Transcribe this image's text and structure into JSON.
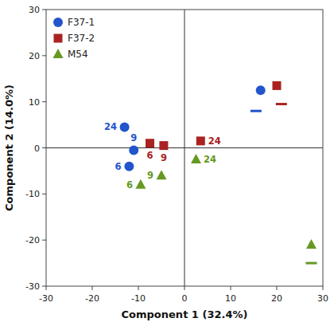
{
  "chart_data": {
    "type": "scatter",
    "xlabel": "Component 1 (32.4%)",
    "ylabel": "Component 2 (14.0%)",
    "xlim": [
      -30,
      30
    ],
    "ylim": [
      -30,
      30
    ],
    "xticks": [
      -30,
      -20,
      -10,
      0,
      10,
      20,
      30
    ],
    "yticks": [
      -30,
      -20,
      -10,
      0,
      10,
      20,
      30
    ],
    "grid": false,
    "legend": "upper left",
    "series": [
      {
        "name": "F37-1",
        "color": "#2255cc",
        "marker": "circle",
        "x": [
          -13.0,
          -11.0,
          -12.0,
          16.5
        ],
        "values": [
          4.5,
          -0.5,
          -4.0,
          12.5
        ],
        "labels": [
          "24",
          "9",
          "6",
          null
        ],
        "dash_x": [
          15.5
        ],
        "dash_values": [
          8.0
        ]
      },
      {
        "name": "F37-2",
        "color": "#aa2222",
        "marker": "square",
        "x": [
          -7.5,
          -4.5,
          3.5,
          20.0
        ],
        "values": [
          1.0,
          0.5,
          1.5,
          13.5
        ],
        "labels": [
          "6",
          "9",
          "24",
          null
        ],
        "dash_x": [
          21.0
        ],
        "dash_values": [
          9.5
        ]
      },
      {
        "name": "M54",
        "color": "#669922",
        "marker": "triangle",
        "x": [
          -9.5,
          -5.0,
          2.5,
          27.5
        ],
        "values": [
          -8.0,
          -6.0,
          -2.5,
          -21.0
        ],
        "labels": [
          "6",
          "9",
          "24",
          null
        ],
        "dash_x": [
          27.5
        ],
        "dash_values": [
          -25.0
        ]
      }
    ]
  }
}
